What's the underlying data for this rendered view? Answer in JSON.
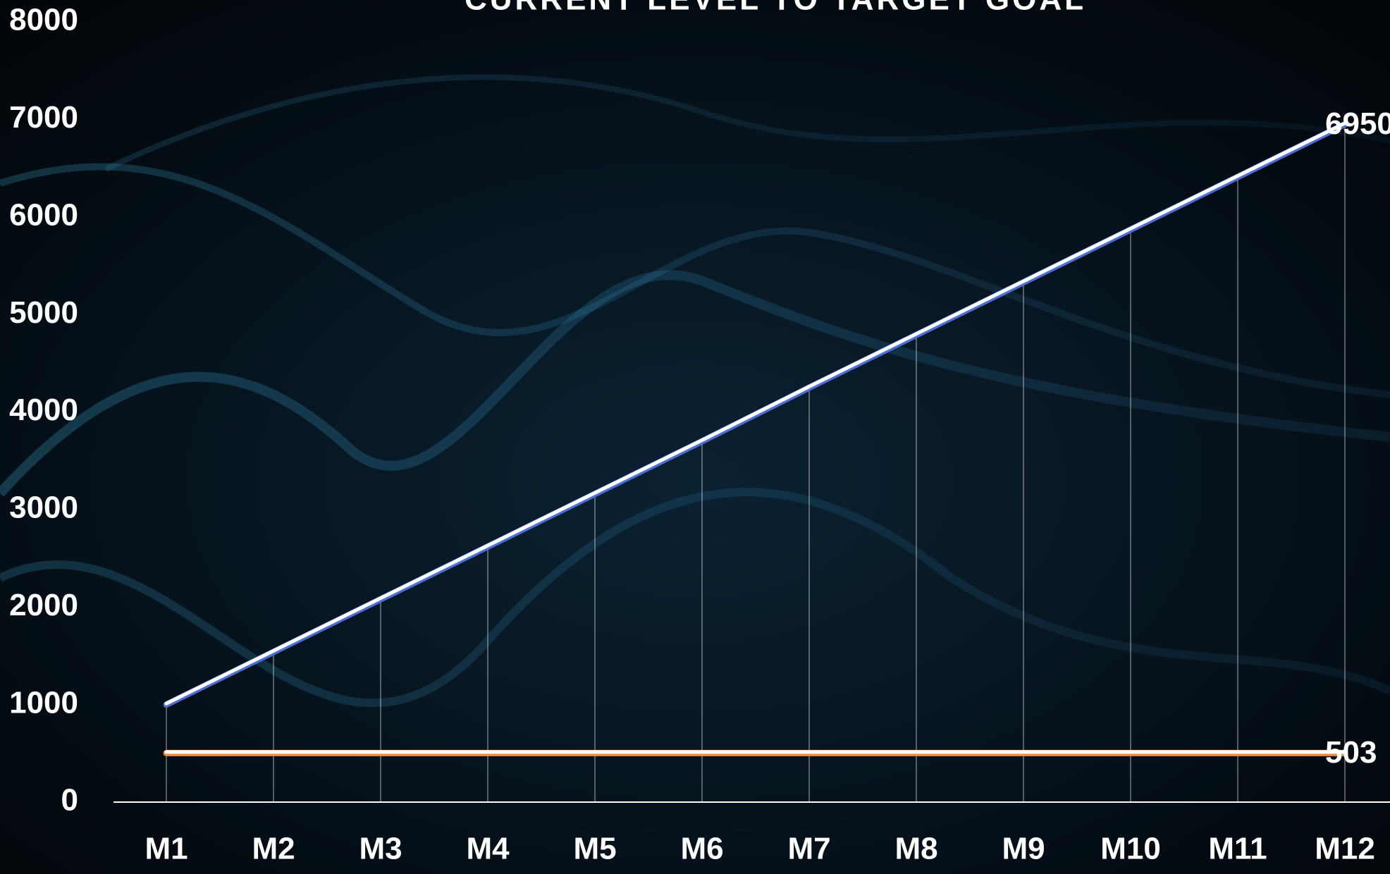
{
  "chart_data": {
    "type": "line",
    "title": "CURRENT LEVEL TO TARGET GOAL",
    "categories": [
      "M1",
      "M2",
      "M3",
      "M4",
      "M5",
      "M6",
      "M7",
      "M8",
      "M9",
      "M10",
      "M11",
      "M12"
    ],
    "series": [
      {
        "color": "#4a6fd8",
        "values": [
          1000,
          1540,
          2080,
          2620,
          3160,
          3700,
          4250,
          4790,
          5330,
          5870,
          6410,
          6950
        ]
      },
      {
        "color": "#f08a3c",
        "values": [
          503,
          503,
          503,
          503,
          503,
          503,
          503,
          503,
          503,
          503,
          503,
          503
        ]
      }
    ],
    "ylim": [
      0,
      8000
    ],
    "yticks": [
      0,
      1000,
      2000,
      3000,
      4000,
      5000,
      6000,
      7000,
      8000
    ]
  }
}
